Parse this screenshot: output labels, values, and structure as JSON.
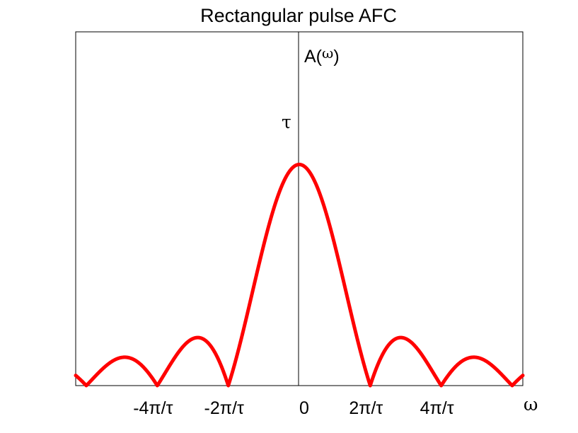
{
  "chart_data": {
    "type": "line",
    "title": "Rectangular pulse AFC",
    "xlabel": "ω",
    "ylabel": "A(ω)",
    "y_tick_label": "τ",
    "xlim": [
      -3.15,
      3.15
    ],
    "ylim": [
      0,
      1.6
    ],
    "x_ticks": [
      {
        "value": -2,
        "label": "-4π/τ"
      },
      {
        "value": -1,
        "label": "-2π/τ"
      },
      {
        "value": 0,
        "label": "0"
      },
      {
        "value": 1,
        "label": "2π/τ"
      },
      {
        "value": 2,
        "label": "4π/τ"
      }
    ],
    "series": [
      {
        "color": "#ff0000",
        "function": "abs(sin(pi*x)/(pi*x))",
        "x": [
          -3.15,
          -3.0,
          -2.5,
          -2.0,
          -1.5,
          -1.0,
          -0.5,
          0,
          0.5,
          1.0,
          1.5,
          2.0,
          2.5,
          3.0,
          3.15
        ],
        "y": [
          0.05,
          0.0,
          0.127,
          0.0,
          0.212,
          0.0,
          0.637,
          1.0,
          0.637,
          0.0,
          0.212,
          0.0,
          0.127,
          0.0,
          0.05
        ]
      }
    ],
    "grid": false,
    "legend": "none"
  }
}
